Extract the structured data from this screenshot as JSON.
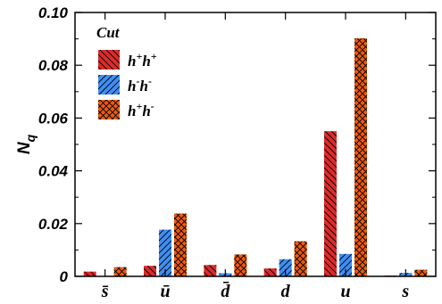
{
  "chart_data": {
    "type": "bar",
    "categories": [
      "s̄",
      "ū",
      "d̄",
      "d",
      "u",
      "s"
    ],
    "series": [
      {
        "name": "h+h+",
        "color": "#dd2b2b",
        "hatch": "diagonal-back",
        "values": [
          0.0018,
          0.004,
          0.0043,
          0.003,
          0.055,
          0.0003
        ]
      },
      {
        "name": "h-h-",
        "color": "#3f8ef2",
        "hatch": "diagonal-forward",
        "values": [
          0.0,
          0.0177,
          0.0012,
          0.0065,
          0.0085,
          0.0013
        ]
      },
      {
        "name": "h+h-",
        "color": "#ee5a10",
        "hatch": "crosshatch",
        "values": [
          0.0035,
          0.0238,
          0.0083,
          0.0133,
          0.0902,
          0.0025
        ]
      }
    ],
    "ylabel": "N",
    "ylabel_sub": "q",
    "ylim": [
      0,
      0.1
    ],
    "yticks": [
      "0",
      "0.02",
      "0.04",
      "0.06",
      "0.08",
      "0.10"
    ],
    "ytick_values": [
      0,
      0.02,
      0.04,
      0.06,
      0.08,
      0.1
    ],
    "legend": {
      "title": "Cut",
      "placement": "top-left",
      "entries": [
        {
          "base": "h",
          "sup1": "+",
          "base2": "h",
          "sup2": "+"
        },
        {
          "base": "h",
          "sup1": "-",
          "base2": "h",
          "sup2": "-"
        },
        {
          "base": "h",
          "sup1": "+",
          "base2": "h",
          "sup2": "-"
        }
      ]
    }
  }
}
